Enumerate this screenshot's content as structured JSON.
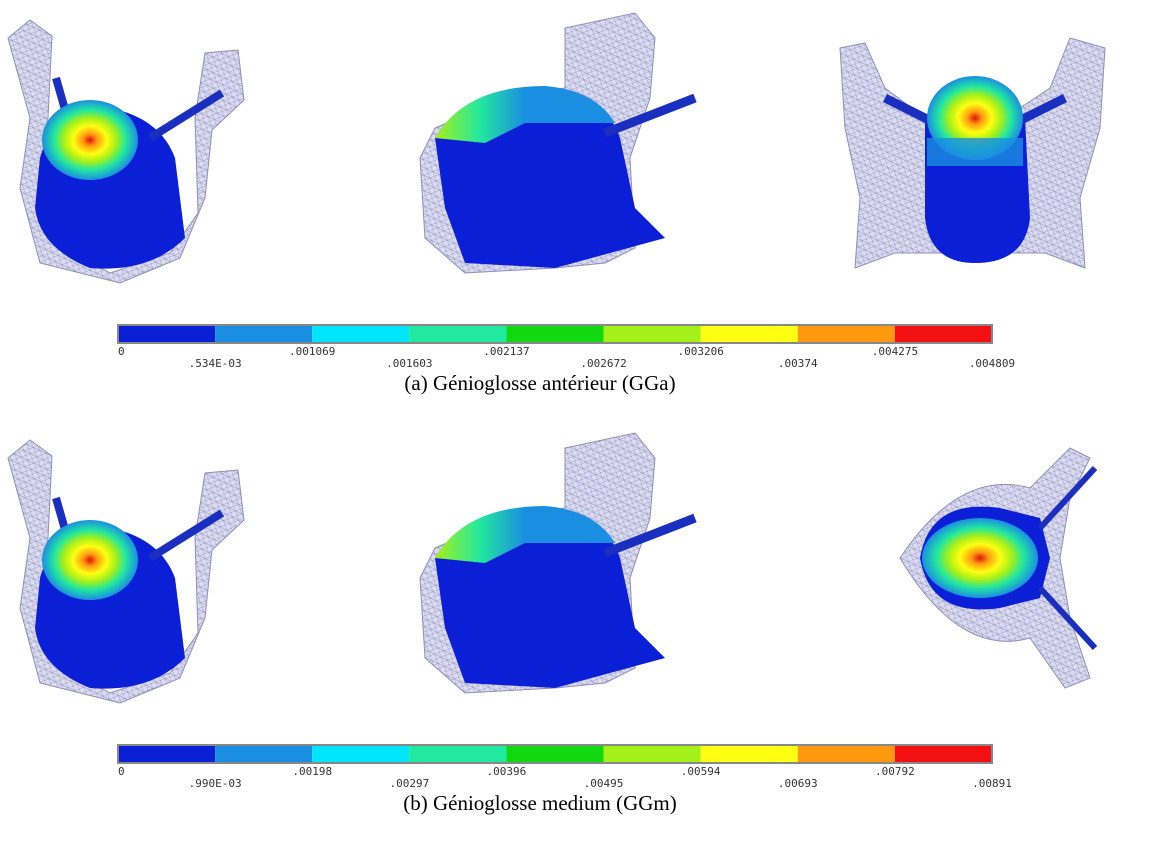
{
  "panels": [
    {
      "caption": "(a) Génioglosse antérieur (GGa)",
      "colorbar_labels": [
        "0",
        ".534E-03",
        ".001069",
        ".001603",
        ".002137",
        ".002672",
        ".003206",
        ".00374",
        ".004275",
        ".004809"
      ]
    },
    {
      "caption": "(b) Génioglosse medium (GGm)",
      "colorbar_labels": [
        "0",
        ".990E-03",
        ".00198",
        ".00297",
        ".00396",
        ".00495",
        ".00594",
        ".00693",
        ".00792",
        ".00891"
      ]
    }
  ],
  "colorbar_colors": [
    "#0b1fd6",
    "#1a8ee0",
    "#00e6ff",
    "#22e8a0",
    "#12d812",
    "#a6f019",
    "#ffff12",
    "#ff9a10",
    "#f21010"
  ]
}
